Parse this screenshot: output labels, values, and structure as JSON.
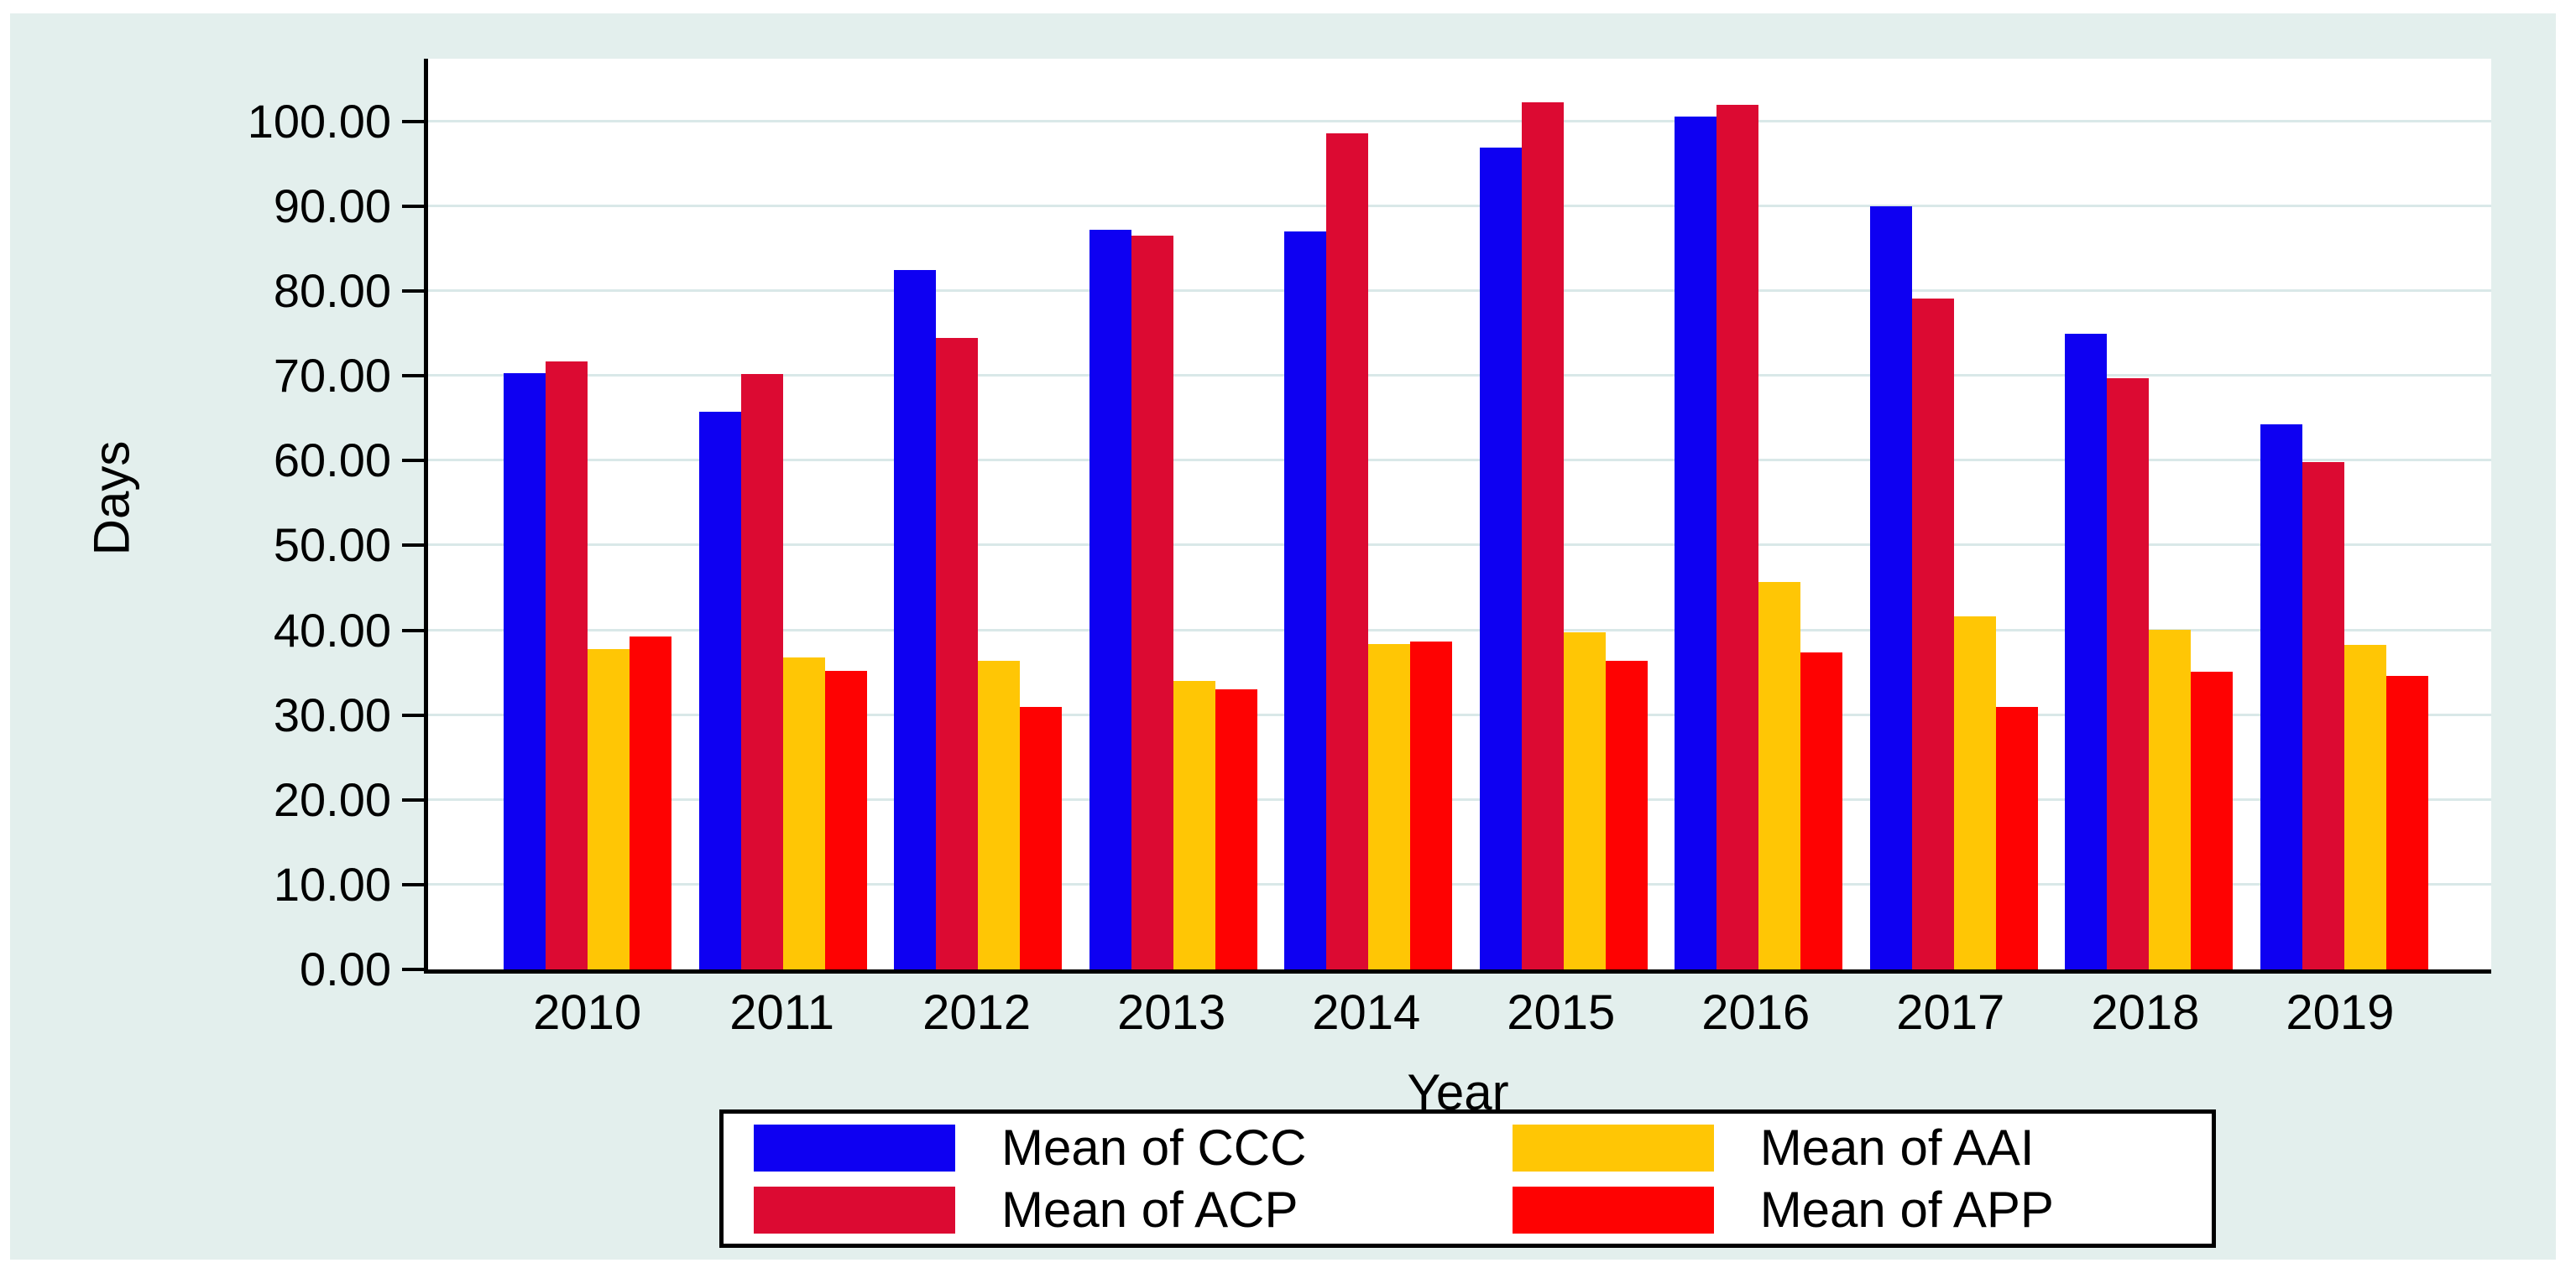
{
  "figure": {
    "background": "#e3efed",
    "plot_background": "#ffffff",
    "gridline_color": "#d9e8e8",
    "axis_color": "#000000"
  },
  "y_axis": {
    "title": "Days",
    "ticks": [
      {
        "value": 100,
        "label": "100.00"
      },
      {
        "value": 90,
        "label": "90.00"
      },
      {
        "value": 80,
        "label": "80.00"
      },
      {
        "value": 70,
        "label": "70.00"
      },
      {
        "value": 60,
        "label": "60.00"
      },
      {
        "value": 50,
        "label": "50.00"
      },
      {
        "value": 40,
        "label": "40.00"
      },
      {
        "value": 30,
        "label": "30.00"
      },
      {
        "value": 20,
        "label": "20.00"
      },
      {
        "value": 10,
        "label": "10.00"
      },
      {
        "value": 0,
        "label": "0.00"
      }
    ]
  },
  "x_axis": {
    "title": "Year"
  },
  "chart_data": {
    "type": "bar",
    "title": "",
    "xlabel": "Year",
    "ylabel": "Days",
    "ylim": [
      0,
      107.4
    ],
    "grid": true,
    "legend_position": "bottom",
    "categories": [
      "2010",
      "2011",
      "2012",
      "2013",
      "2014",
      "2015",
      "2016",
      "2017",
      "2018",
      "2019"
    ],
    "series": [
      {
        "name": "Mean of CCC",
        "color": "#0e00f2",
        "values": [
          70.3,
          65.8,
          82.5,
          87.2,
          87.0,
          96.9,
          100.6,
          90.0,
          75.0,
          64.3
        ]
      },
      {
        "name": "Mean of ACP",
        "color": "#dc0a32",
        "values": [
          71.7,
          70.2,
          74.5,
          86.5,
          98.6,
          102.3,
          102.0,
          79.1,
          69.7,
          59.8
        ]
      },
      {
        "name": "Mean of AAI",
        "color": "#ffc605",
        "values": [
          37.8,
          36.8,
          36.4,
          34.0,
          38.4,
          39.8,
          45.7,
          41.6,
          40.1,
          38.3
        ]
      },
      {
        "name": "Mean of APP",
        "color": "#fe0202",
        "values": [
          39.3,
          35.2,
          31.0,
          33.0,
          38.7,
          36.4,
          37.4,
          31.0,
          35.1,
          34.6
        ]
      }
    ]
  },
  "legend": {
    "columns": [
      {
        "items": [
          {
            "label": "Mean of CCC",
            "color": "#0e00f2"
          },
          {
            "label": "Mean of ACP",
            "color": "#dc0a32"
          }
        ]
      },
      {
        "items": [
          {
            "label": "Mean of AAI",
            "color": "#ffc605"
          },
          {
            "label": "Mean of APP",
            "color": "#fe0202"
          }
        ]
      }
    ]
  }
}
